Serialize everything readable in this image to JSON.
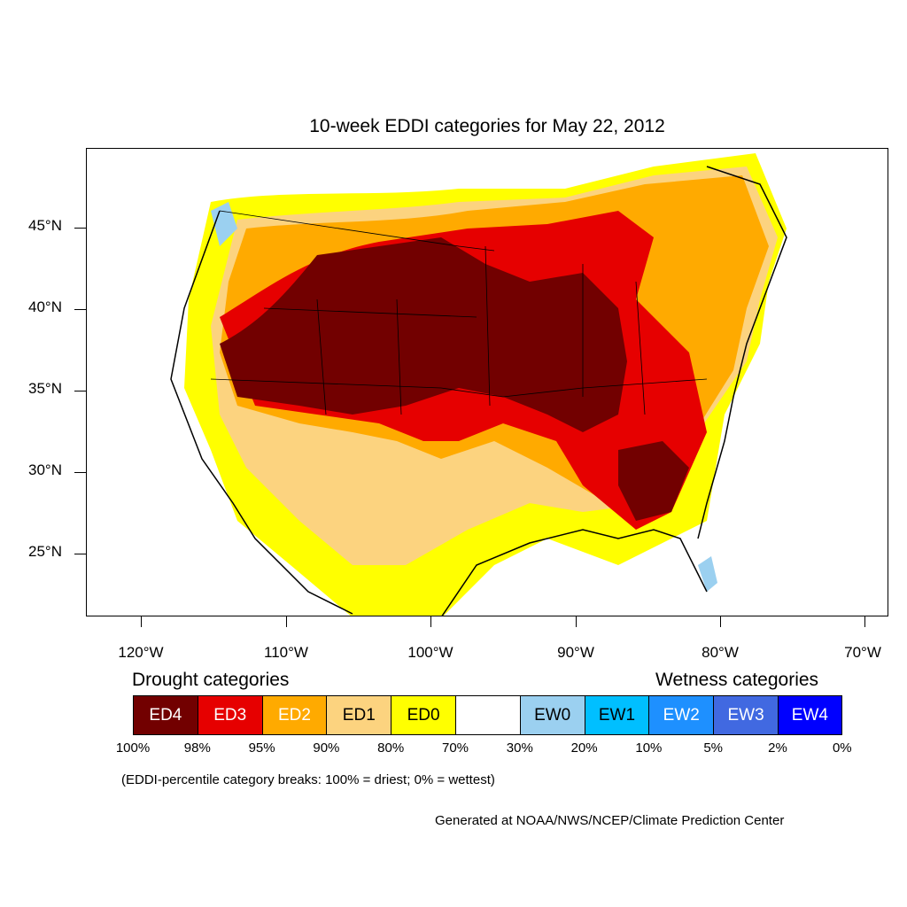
{
  "title": "10-week EDDI categories for May 22, 2012",
  "y_axis": {
    "labels": [
      "45°N",
      "40°N",
      "35°N",
      "30°N",
      "25°N"
    ]
  },
  "x_axis": {
    "labels": [
      "120°W",
      "110°W",
      "100°W",
      "90°W",
      "80°W",
      "70°W"
    ]
  },
  "legend": {
    "drought_label": "Drought categories",
    "wetness_label": "Wetness categories",
    "categories": [
      {
        "label": "ED4",
        "color": "#720000"
      },
      {
        "label": "ED3",
        "color": "#e60000"
      },
      {
        "label": "ED2",
        "color": "#ffaa00"
      },
      {
        "label": "ED1",
        "color": "#fcd37f"
      },
      {
        "label": "ED0",
        "color": "#ffff00"
      },
      {
        "label": "",
        "color": "#ffffff"
      },
      {
        "label": "EW0",
        "color": "#9bd0f0"
      },
      {
        "label": "EW1",
        "color": "#00bfff"
      },
      {
        "label": "EW2",
        "color": "#1e90ff"
      },
      {
        "label": "EW3",
        "color": "#4169e1"
      },
      {
        "label": "EW4",
        "color": "#0000ff"
      }
    ],
    "percentiles": [
      "100%",
      "98%",
      "95%",
      "90%",
      "80%",
      "70%",
      "30%",
      "20%",
      "10%",
      "5%",
      "2%",
      "0%"
    ]
  },
  "note": "(EDDI-percentile category breaks: 100% = driest; 0% = wettest)",
  "credit": "Generated at NOAA/NWS/NCEP/Climate Prediction Center"
}
